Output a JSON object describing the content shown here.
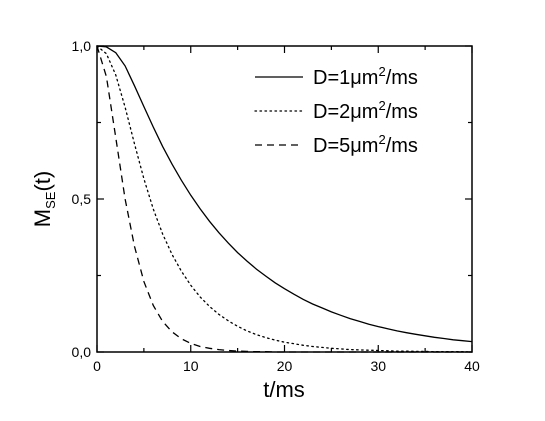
{
  "chart_data": {
    "type": "line",
    "title": "",
    "xlabel": "t/ms",
    "ylabel": {
      "main": "M",
      "sub": "SE",
      "rest": "(t)"
    },
    "xlim": [
      0,
      40
    ],
    "ylim": [
      0,
      1
    ],
    "xticks": [
      {
        "value": 0,
        "label": "0"
      },
      {
        "value": 10,
        "label": "10"
      },
      {
        "value": 20,
        "label": "20"
      },
      {
        "value": 30,
        "label": "30"
      },
      {
        "value": 40,
        "label": "40"
      }
    ],
    "yticks": [
      {
        "value": 0,
        "label": "0,0"
      },
      {
        "value": 0.5,
        "label": "0,5"
      },
      {
        "value": 1,
        "label": "1,0"
      }
    ],
    "grid": false,
    "legend_position": "top-right",
    "x": [
      0,
      1,
      2,
      3,
      4,
      5,
      6,
      7,
      8,
      9,
      10,
      11,
      12,
      13,
      14,
      15,
      16,
      17,
      18,
      19,
      20,
      21,
      22,
      23,
      24,
      25,
      26,
      27,
      28,
      29,
      30,
      31,
      32,
      33,
      34,
      35,
      36,
      37,
      38,
      39,
      40
    ],
    "series": [
      {
        "legend": {
          "pre": "D=1",
          "mu": "μ",
          "unit": "m",
          "sup": "2",
          "post": "/ms"
        },
        "style": "solid",
        "values": [
          1.0,
          0.997,
          0.978,
          0.935,
          0.87,
          0.802,
          0.735,
          0.672,
          0.614,
          0.561,
          0.512,
          0.468,
          0.427,
          0.39,
          0.356,
          0.325,
          0.297,
          0.271,
          0.248,
          0.226,
          0.207,
          0.189,
          0.172,
          0.157,
          0.144,
          0.131,
          0.12,
          0.109,
          0.1,
          0.091,
          0.083,
          0.076,
          0.069,
          0.063,
          0.058,
          0.053,
          0.048,
          0.044,
          0.04,
          0.037,
          0.034
        ]
      },
      {
        "legend": {
          "pre": "D=2",
          "mu": "μ",
          "unit": "m",
          "sup": "2",
          "post": "/ms"
        },
        "style": "dotted",
        "values": [
          1.0,
          0.975,
          0.905,
          0.8,
          0.68,
          0.566,
          0.467,
          0.386,
          0.319,
          0.264,
          0.218,
          0.18,
          0.149,
          0.123,
          0.102,
          0.084,
          0.069,
          0.057,
          0.047,
          0.039,
          0.032,
          0.027,
          0.022,
          0.018,
          0.015,
          0.012,
          0.01,
          0.008,
          0.007,
          0.006,
          0.005,
          0.004,
          0.003,
          0.003,
          0.002,
          0.002,
          0.001,
          0.001,
          0.001,
          0.001,
          0.0
        ]
      },
      {
        "legend": {
          "pre": "D=5",
          "mu": "μ",
          "unit": "m",
          "sup": "2",
          "post": "/ms"
        },
        "style": "dashed",
        "values": [
          1.0,
          0.9,
          0.7,
          0.5,
          0.345,
          0.23,
          0.152,
          0.1,
          0.066,
          0.043,
          0.028,
          0.018,
          0.012,
          0.008,
          0.005,
          0.003,
          0.002,
          0.001,
          0.001,
          0.0,
          0.0,
          0.0,
          0.0,
          0.0,
          0.0,
          0.0,
          0.0,
          0.0,
          0.0,
          0.0,
          0.0,
          0.0,
          0.0,
          0.0,
          0.0,
          0.0,
          0.0,
          0.0,
          0.0,
          0.0,
          0.0
        ]
      }
    ]
  }
}
